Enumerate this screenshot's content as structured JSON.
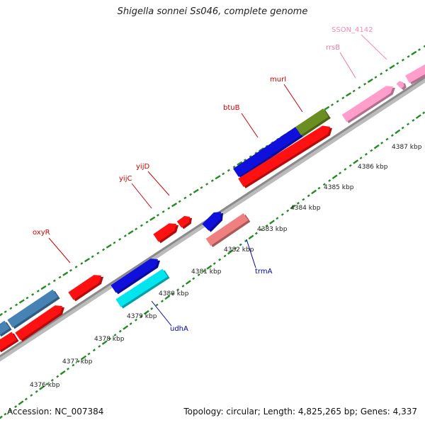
{
  "title": "Shigella sonnei Ss046, complete genome",
  "accession": "Accession: NC_007384",
  "summary": "Topology: circular; Length: 4,825,265 bp; Genes: 4,337",
  "ticks": [
    {
      "label": "4376 kbp"
    },
    {
      "label": "4377 kbp"
    },
    {
      "label": "4378 kbp"
    },
    {
      "label": "4379 kbp"
    },
    {
      "label": "4380 kbp"
    },
    {
      "label": "4381 kbp"
    },
    {
      "label": "4382 kbp"
    },
    {
      "label": "4383 kbp"
    },
    {
      "label": "4384 kbp"
    },
    {
      "label": "4385 kbp"
    },
    {
      "label": "4386 kbp"
    },
    {
      "label": "4387 kbp"
    }
  ],
  "gene_labels": [
    {
      "name": "oxyR",
      "color": "#cc0000"
    },
    {
      "name": "yijC",
      "color": "#cc0000"
    },
    {
      "name": "yijD",
      "color": "#cc0000"
    },
    {
      "name": "btuB",
      "color": "#cc0000"
    },
    {
      "name": "murI",
      "color": "#cc0000"
    },
    {
      "name": "rrsB",
      "color": "#e07aa8"
    },
    {
      "name": "SSON_4142",
      "color": "#f08cb8"
    },
    {
      "name": "trmA",
      "color": "#0000aa"
    },
    {
      "name": "udhA",
      "color": "#0000aa"
    }
  ],
  "colors": {
    "backbone": "#999999",
    "tick": "#228b22",
    "cds_red": "#ff1111",
    "cds_blue": "#1010dd",
    "cds_steel": "#4682b4",
    "cds_cyan": "#00e5ee",
    "cds_olive": "#6b8e23",
    "cds_salmon": "#f08080",
    "rna_pink": "#ff9ecb"
  }
}
